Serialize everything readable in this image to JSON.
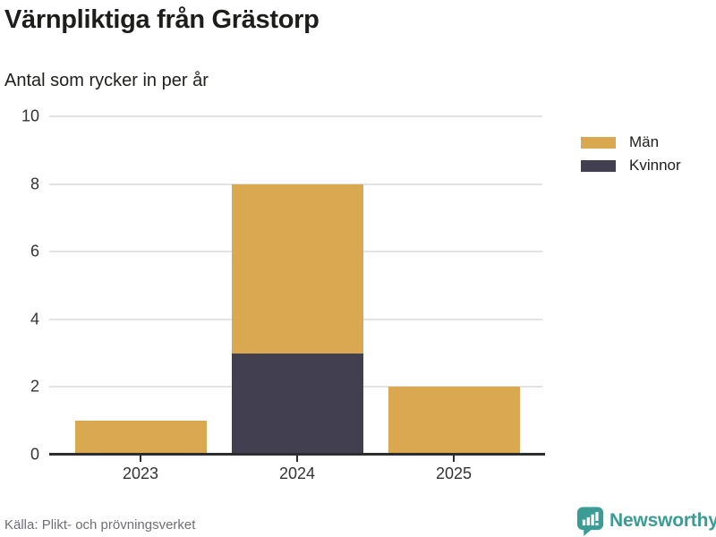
{
  "header": {
    "title": "Värnpliktiga från Grästorp",
    "subtitle": "Antal som rycker in per år"
  },
  "chart_data": {
    "type": "bar",
    "stacked": true,
    "title": "Värnpliktiga från Grästorp",
    "subtitle": "Antal som rycker in per år",
    "xlabel": "",
    "ylabel": "",
    "categories": [
      "2023",
      "2024",
      "2025"
    ],
    "series": [
      {
        "name": "Män",
        "color": "#D9A851",
        "values": [
          1,
          5,
          2
        ]
      },
      {
        "name": "Kvinnor",
        "color": "#413F50",
        "values": [
          0,
          3,
          0
        ]
      }
    ],
    "stack_order_bottom_to_top": [
      "Kvinnor",
      "Män"
    ],
    "totals": [
      1,
      8,
      2
    ],
    "ylim": [
      0,
      10
    ],
    "yticks": [
      0,
      2,
      4,
      6,
      8,
      10
    ],
    "grid": "horizontal",
    "legend_position": "top-right",
    "axis_color": "#2d2d2d",
    "gridline_color": "#e3e3e3"
  },
  "footer": {
    "source": "Källa: Plikt- och prövningsverket",
    "brand": "Newsworthy",
    "brand_color": "#3A9C94",
    "logo_icon": "newsworthy-speech-bubble-bar-chart"
  }
}
